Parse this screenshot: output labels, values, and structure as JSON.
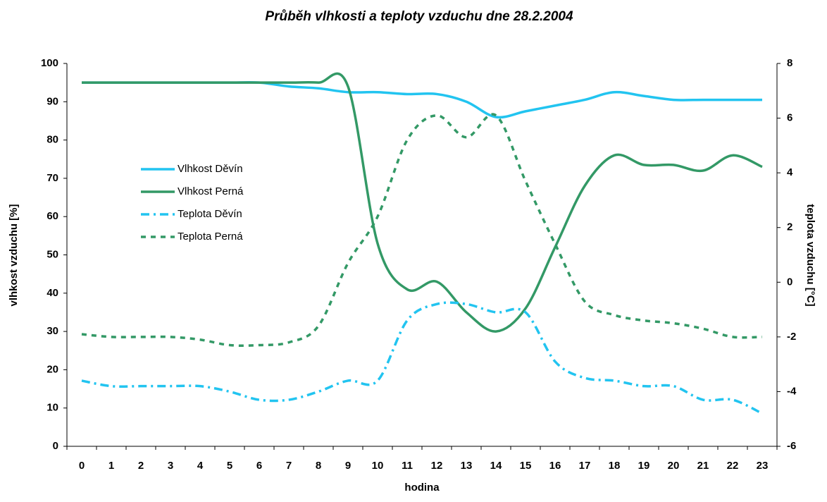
{
  "chart_data": {
    "type": "line",
    "title": "Průběh vlhkosti  a teploty vzduchu dne 28.2.2004",
    "x_label": "hodina",
    "y_label": "vlhkost vzduchu [%]",
    "y2_label": "teplota vzduchu [°C]",
    "categories": [
      "0",
      "1",
      "2",
      "3",
      "4",
      "5",
      "6",
      "7",
      "8",
      "9",
      "10",
      "11",
      "12",
      "13",
      "14",
      "15",
      "16",
      "17",
      "18",
      "19",
      "20",
      "21",
      "22",
      "23"
    ],
    "ylim": [
      0,
      100
    ],
    "yticks": [
      0,
      10,
      20,
      30,
      40,
      50,
      60,
      70,
      80,
      90,
      100
    ],
    "y2lim": [
      -6,
      8
    ],
    "y2ticks": [
      -6,
      -4,
      -2,
      0,
      2,
      4,
      6,
      8
    ],
    "legend": "left",
    "series": [
      {
        "name": "Vlhkost Děvín",
        "color": "#22c4f0",
        "dash": "solid",
        "values": [
          95,
          95,
          95,
          95,
          95,
          95,
          95,
          94,
          93.5,
          92.5,
          92.5,
          92,
          92,
          90,
          86,
          87.5,
          89,
          90.5,
          92.5,
          91.5,
          90.5,
          90.5,
          90.5,
          90.5
        ]
      },
      {
        "name": "Vlhkost Perná",
        "color": "#339966",
        "dash": "solid",
        "values": [
          95,
          95,
          95,
          95,
          95,
          95,
          95,
          95,
          95,
          94,
          53,
          41,
          43,
          35,
          30,
          36,
          52,
          68,
          76,
          73.5,
          73.5,
          72,
          76,
          73
        ]
      },
      {
        "name": "Teplota Děvín",
        "color": "#22c4f0",
        "dash": "dashdot",
        "axis": "y2",
        "values": [
          -3.6,
          -3.8,
          -3.8,
          -3.8,
          -3.8,
          -4,
          -4.3,
          -4.3,
          -4,
          -3.6,
          -3.6,
          -1.4,
          -0.8,
          -0.8,
          -1.1,
          -1.1,
          -2.9,
          -3.5,
          -3.6,
          -3.8,
          -3.8,
          -4.3,
          -4.3,
          -4.8
        ]
      },
      {
        "name": "Teplota Perná",
        "color": "#339966",
        "dash": "dash",
        "axis": "y2",
        "values": [
          -1.9,
          -2,
          -2,
          -2,
          -2.1,
          -2.3,
          -2.3,
          -2.2,
          -1.6,
          0.7,
          2.4,
          5.2,
          6.1,
          5.3,
          6.1,
          3.7,
          1.4,
          -0.7,
          -1.2,
          -1.4,
          -1.5,
          -1.7,
          -2,
          -2
        ]
      }
    ]
  }
}
